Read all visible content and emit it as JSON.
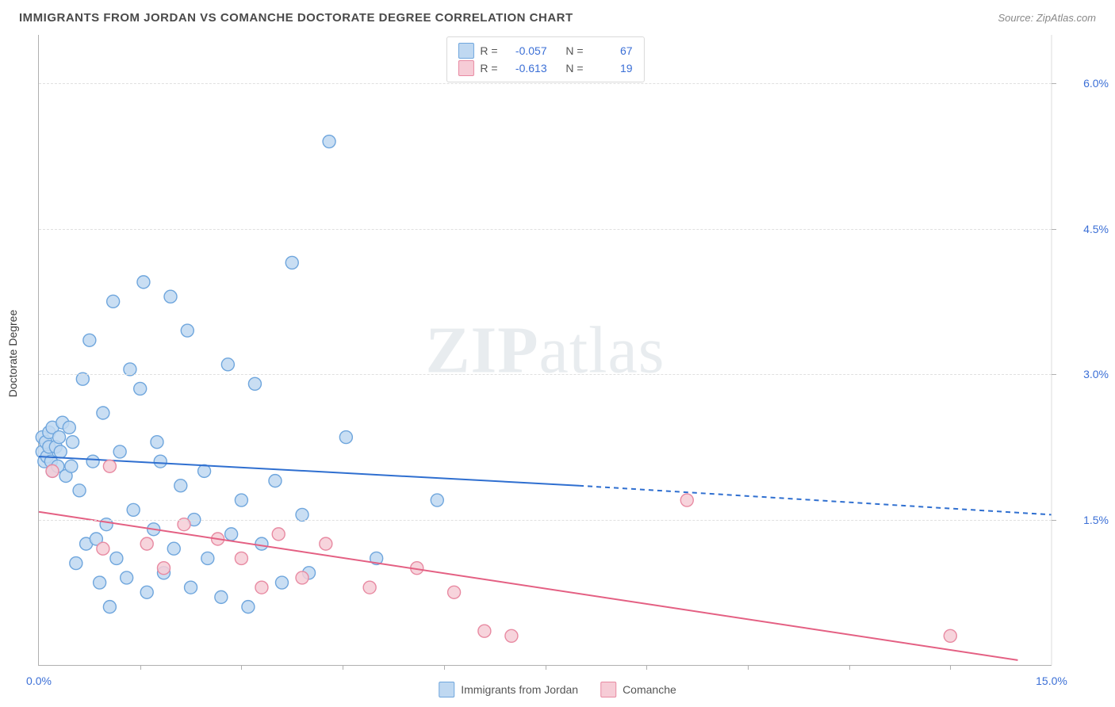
{
  "title": "IMMIGRANTS FROM JORDAN VS COMANCHE DOCTORATE DEGREE CORRELATION CHART",
  "source_label": "Source: ZipAtlas.com",
  "y_axis_title": "Doctorate Degree",
  "watermark_bold": "ZIP",
  "watermark_light": "atlas",
  "chart": {
    "type": "scatter",
    "xlim": [
      0,
      15
    ],
    "ylim": [
      0,
      6.5
    ],
    "x_ticks": [
      0,
      15
    ],
    "x_tick_labels": [
      "0.0%",
      "15.0%"
    ],
    "x_minor_ticks": [
      1.5,
      3,
      4.5,
      6,
      7.5,
      9,
      10.5,
      12,
      13.5
    ],
    "y_ticks": [
      1.5,
      3.0,
      4.5,
      6.0
    ],
    "y_tick_labels": [
      "1.5%",
      "3.0%",
      "4.5%",
      "6.0%"
    ],
    "grid_color": "#e0e0e0",
    "axis_color": "#b0b0b0",
    "tick_label_color": "#3b6fd6",
    "background_color": "#ffffff",
    "marker_radius": 8,
    "marker_stroke_width": 1.4,
    "line_width": 2,
    "dash_pattern": "6,5"
  },
  "series": [
    {
      "key": "jordan",
      "name": "Immigrants from Jordan",
      "fill": "#bfd8f1",
      "stroke": "#6fa6dd",
      "line_color": "#2f6fd0",
      "R": "-0.057",
      "N": "67",
      "trend_solid": {
        "x1": 0,
        "y1": 2.15,
        "x2": 8.0,
        "y2": 1.85
      },
      "trend_dash": {
        "x1": 8.0,
        "y1": 1.85,
        "x2": 15.0,
        "y2": 1.55
      },
      "points": [
        [
          0.05,
          2.2
        ],
        [
          0.05,
          2.35
        ],
        [
          0.08,
          2.1
        ],
        [
          0.1,
          2.3
        ],
        [
          0.12,
          2.15
        ],
        [
          0.15,
          2.25
        ],
        [
          0.15,
          2.4
        ],
        [
          0.18,
          2.1
        ],
        [
          0.2,
          2.45
        ],
        [
          0.2,
          2.0
        ],
        [
          0.25,
          2.25
        ],
        [
          0.28,
          2.05
        ],
        [
          0.3,
          2.35
        ],
        [
          0.32,
          2.2
        ],
        [
          0.35,
          2.5
        ],
        [
          0.4,
          1.95
        ],
        [
          0.45,
          2.45
        ],
        [
          0.48,
          2.05
        ],
        [
          0.5,
          2.3
        ],
        [
          0.55,
          1.05
        ],
        [
          0.6,
          1.8
        ],
        [
          0.65,
          2.95
        ],
        [
          0.7,
          1.25
        ],
        [
          0.75,
          3.35
        ],
        [
          0.8,
          2.1
        ],
        [
          0.85,
          1.3
        ],
        [
          0.9,
          0.85
        ],
        [
          0.95,
          2.6
        ],
        [
          1.0,
          1.45
        ],
        [
          1.05,
          0.6
        ],
        [
          1.1,
          3.75
        ],
        [
          1.15,
          1.1
        ],
        [
          1.2,
          2.2
        ],
        [
          1.3,
          0.9
        ],
        [
          1.35,
          3.05
        ],
        [
          1.4,
          1.6
        ],
        [
          1.5,
          2.85
        ],
        [
          1.55,
          3.95
        ],
        [
          1.6,
          0.75
        ],
        [
          1.7,
          1.4
        ],
        [
          1.75,
          2.3
        ],
        [
          1.8,
          2.1
        ],
        [
          1.85,
          0.95
        ],
        [
          1.95,
          3.8
        ],
        [
          2.0,
          1.2
        ],
        [
          2.1,
          1.85
        ],
        [
          2.2,
          3.45
        ],
        [
          2.25,
          0.8
        ],
        [
          2.3,
          1.5
        ],
        [
          2.45,
          2.0
        ],
        [
          2.5,
          1.1
        ],
        [
          2.7,
          0.7
        ],
        [
          2.8,
          3.1
        ],
        [
          2.85,
          1.35
        ],
        [
          3.0,
          1.7
        ],
        [
          3.1,
          0.6
        ],
        [
          3.2,
          2.9
        ],
        [
          3.3,
          1.25
        ],
        [
          3.5,
          1.9
        ],
        [
          3.6,
          0.85
        ],
        [
          3.75,
          4.15
        ],
        [
          3.9,
          1.55
        ],
        [
          4.0,
          0.95
        ],
        [
          4.3,
          5.4
        ],
        [
          4.55,
          2.35
        ],
        [
          5.0,
          1.1
        ],
        [
          5.9,
          1.7
        ]
      ]
    },
    {
      "key": "comanche",
      "name": "Comanche",
      "fill": "#f6ccd6",
      "stroke": "#e88aa2",
      "line_color": "#e46083",
      "R": "-0.613",
      "N": "19",
      "trend_solid": {
        "x1": 0,
        "y1": 1.58,
        "x2": 14.5,
        "y2": 0.05
      },
      "trend_dash": null,
      "points": [
        [
          0.2,
          2.0
        ],
        [
          0.95,
          1.2
        ],
        [
          1.05,
          2.05
        ],
        [
          1.6,
          1.25
        ],
        [
          1.85,
          1.0
        ],
        [
          2.15,
          1.45
        ],
        [
          2.65,
          1.3
        ],
        [
          3.0,
          1.1
        ],
        [
          3.3,
          0.8
        ],
        [
          3.55,
          1.35
        ],
        [
          3.9,
          0.9
        ],
        [
          4.25,
          1.25
        ],
        [
          4.9,
          0.8
        ],
        [
          5.6,
          1.0
        ],
        [
          6.15,
          0.75
        ],
        [
          6.6,
          0.35
        ],
        [
          7.0,
          0.3
        ],
        [
          9.6,
          1.7
        ],
        [
          13.5,
          0.3
        ]
      ]
    }
  ],
  "legend_top": {
    "rows": [
      {
        "swatch_fill": "#bfd8f1",
        "swatch_stroke": "#6fa6dd",
        "R_label": "R =",
        "R": "-0.057",
        "N_label": "N =",
        "N": "67"
      },
      {
        "swatch_fill": "#f6ccd6",
        "swatch_stroke": "#e88aa2",
        "R_label": "R =",
        "R": "-0.613",
        "N_label": "N =",
        "N": "19"
      }
    ]
  },
  "legend_bottom": [
    {
      "swatch_fill": "#bfd8f1",
      "swatch_stroke": "#6fa6dd",
      "label": "Immigrants from Jordan"
    },
    {
      "swatch_fill": "#f6ccd6",
      "swatch_stroke": "#e88aa2",
      "label": "Comanche"
    }
  ]
}
